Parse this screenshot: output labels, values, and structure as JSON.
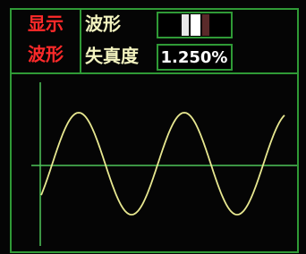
{
  "header": {
    "mode_labels": [
      "显示",
      "波形"
    ],
    "waveform_label": "波形",
    "distortion_label": "失真度",
    "distortion_value": "1.250%"
  }
}
